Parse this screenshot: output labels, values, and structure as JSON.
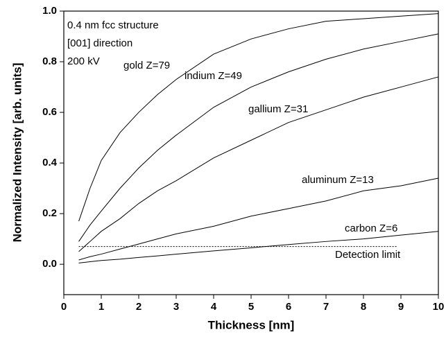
{
  "chart_data": {
    "type": "line",
    "x_label": "Thickness [nm]",
    "y_label": "Normalized Intensity [arb. units]",
    "annotations": [
      "0.4 nm fcc structure",
      "[001] direction",
      "200 kV"
    ],
    "x": [
      0.4,
      0.7,
      1,
      1.5,
      2,
      2.5,
      3,
      4,
      5,
      6,
      7,
      8,
      9,
      10
    ],
    "series": [
      {
        "name": "gold Z=79",
        "color": "#000000",
        "values": [
          0.17,
          0.3,
          0.41,
          0.52,
          0.6,
          0.67,
          0.73,
          0.83,
          0.89,
          0.93,
          0.96,
          0.97,
          0.98,
          0.99
        ]
      },
      {
        "name": "indium Z=49",
        "color": "#000000",
        "values": [
          0.09,
          0.155,
          0.21,
          0.3,
          0.38,
          0.45,
          0.51,
          0.62,
          0.7,
          0.76,
          0.81,
          0.85,
          0.88,
          0.91
        ]
      },
      {
        "name": "gallium Z=31",
        "color": "#000000",
        "values": [
          0.05,
          0.09,
          0.13,
          0.18,
          0.24,
          0.29,
          0.33,
          0.42,
          0.49,
          0.56,
          0.61,
          0.66,
          0.7,
          0.74
        ]
      },
      {
        "name": "aluminum Z=13",
        "color": "#000000",
        "values": [
          0.017,
          0.03,
          0.04,
          0.06,
          0.08,
          0.1,
          0.12,
          0.15,
          0.19,
          0.22,
          0.25,
          0.29,
          0.31,
          0.34
        ]
      },
      {
        "name": "carbon Z=6",
        "color": "#000000",
        "values": [
          0.005,
          0.01,
          0.015,
          0.02,
          0.027,
          0.033,
          0.04,
          0.053,
          0.065,
          0.078,
          0.09,
          0.1,
          0.115,
          0.13
        ]
      }
    ],
    "detection_limit": {
      "label": "Detection limit",
      "value": 0.07,
      "x": [
        0.4,
        8.9
      ]
    },
    "xlim": [
      0,
      10
    ],
    "xticks": [
      0,
      1,
      2,
      3,
      4,
      5,
      6,
      7,
      8,
      9,
      10
    ],
    "ylim": [
      -0.12,
      1.0
    ],
    "yticks": [
      {
        "value": 0,
        "label": "0.0"
      },
      0.2,
      0.4,
      0.6,
      0.8,
      {
        "value": 1,
        "label": "1.0"
      }
    ],
    "grid": false
  }
}
